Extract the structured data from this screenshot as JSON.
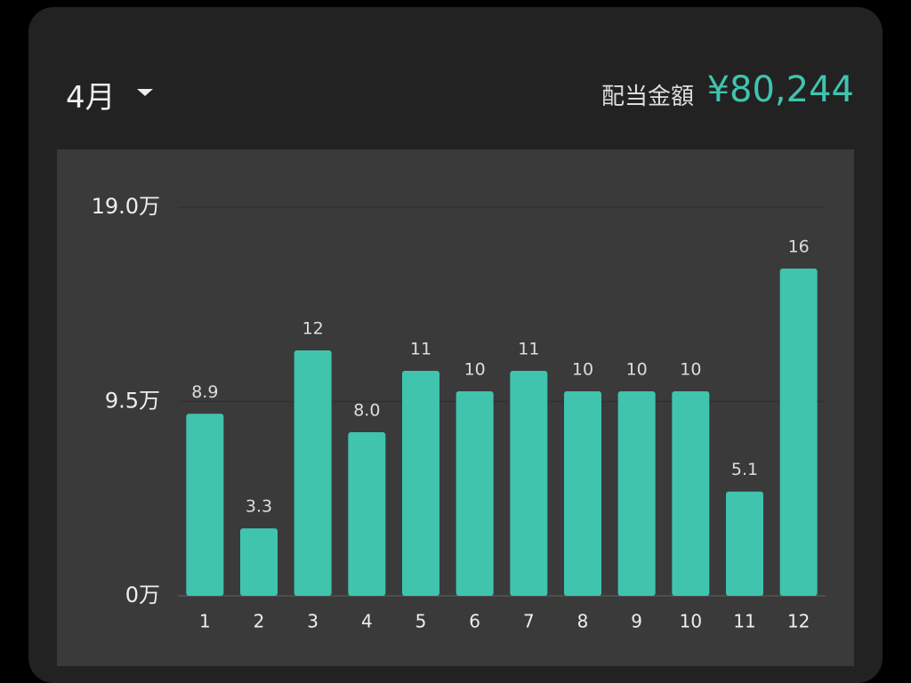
{
  "header": {
    "month": "4月",
    "amount_label": "配当金額",
    "amount": "¥80,244"
  },
  "chart_data": {
    "type": "bar",
    "categories": [
      "1",
      "2",
      "3",
      "4",
      "5",
      "6",
      "7",
      "8",
      "9",
      "10",
      "11",
      "12"
    ],
    "values": [
      8.9,
      3.3,
      12,
      8.0,
      11,
      10,
      11,
      10,
      10,
      10,
      5.1,
      16
    ],
    "value_labels": [
      "8.9",
      "3.3",
      "12",
      "8.0",
      "11",
      "10",
      "11",
      "10",
      "10",
      "10",
      "5.1",
      "16"
    ],
    "color": "#40c4ae",
    "ylim": [
      0,
      19
    ],
    "yticks": [
      {
        "value": 0,
        "label": "0万"
      },
      {
        "value": 9.5,
        "label": "9.5万"
      },
      {
        "value": 19,
        "label": "19.0万"
      }
    ],
    "grid": true
  }
}
